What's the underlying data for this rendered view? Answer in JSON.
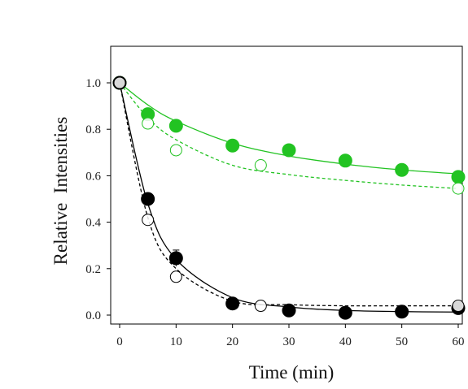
{
  "chart_data": {
    "type": "scatter",
    "xlabel": "Time (min)",
    "ylabel": "Relative  Intensities",
    "xlim": [
      -2,
      61
    ],
    "ylim": [
      -0.04,
      1.15
    ],
    "xticks": [
      0,
      10,
      20,
      30,
      40,
      50,
      60
    ],
    "yticks": [
      0.0,
      0.2,
      0.4,
      0.6,
      0.8,
      1.0
    ],
    "ytick_labels": [
      "0.0",
      "0.2",
      "0.4",
      "0.6",
      "0.8",
      "1.0"
    ],
    "legend": "none",
    "grid": false,
    "series": [
      {
        "marker": "filled-circle",
        "line": "solid",
        "color": "#22c322",
        "x": [
          0,
          5,
          10,
          20,
          30,
          40,
          50,
          60
        ],
        "y": [
          1.0,
          0.865,
          0.815,
          0.73,
          0.71,
          0.665,
          0.625,
          0.595
        ],
        "fit": [
          1.0,
          0.905,
          0.835,
          0.74,
          0.685,
          0.65,
          0.625,
          0.608
        ]
      },
      {
        "marker": "open-circle",
        "line": "dashed",
        "color": "#22c322",
        "x": [
          0,
          5,
          10,
          25,
          60
        ],
        "y": [
          1.0,
          0.825,
          0.71,
          0.645,
          0.545
        ],
        "fit": [
          1.0,
          0.85,
          0.755,
          0.645,
          0.605,
          0.58,
          0.56,
          0.545
        ]
      },
      {
        "marker": "filled-circle",
        "line": "solid",
        "color": "#000000",
        "x": [
          0,
          5,
          10,
          20,
          30,
          40,
          50,
          60
        ],
        "y": [
          1.0,
          0.5,
          0.245,
          0.05,
          0.02,
          0.01,
          0.015,
          0.03
        ],
        "yerr": [
          0,
          0.02,
          0.035,
          0,
          0,
          0,
          0,
          0
        ],
        "fit": [
          1.0,
          0.48,
          0.24,
          0.075,
          0.035,
          0.02,
          0.015,
          0.013
        ]
      },
      {
        "marker": "open-circle",
        "line": "dashed",
        "color": "#000000",
        "x": [
          0,
          5,
          10,
          25,
          60
        ],
        "y": [
          1.0,
          0.41,
          0.165,
          0.04,
          0.04
        ],
        "fit": [
          1.0,
          0.42,
          0.2,
          0.06,
          0.045,
          0.04,
          0.04,
          0.04
        ]
      }
    ],
    "fit_x": [
      0,
      5,
      10,
      20,
      30,
      40,
      50,
      60
    ]
  }
}
